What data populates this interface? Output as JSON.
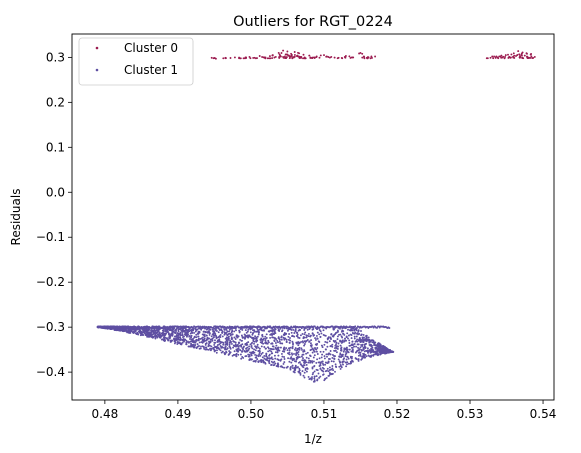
{
  "chart_data": {
    "type": "scatter",
    "title": "Outliers for RGT_0224",
    "xlabel": "1/z",
    "ylabel": "Residuals",
    "xlim": [
      0.4755,
      0.5415
    ],
    "ylim": [
      -0.462,
      0.352
    ],
    "xticks": [
      0.48,
      0.49,
      0.5,
      0.51,
      0.52,
      0.53,
      0.54
    ],
    "xtick_labels": [
      "0.48",
      "0.49",
      "0.50",
      "0.51",
      "0.52",
      "0.53",
      "0.54"
    ],
    "yticks": [
      0.3,
      0.2,
      0.1,
      0.0,
      -0.1,
      -0.2,
      -0.3,
      -0.4
    ],
    "ytick_labels": [
      "0.3",
      "0.2",
      "0.1",
      "0.0",
      "−0.1",
      "−0.2",
      "−0.3",
      "−0.4"
    ],
    "grid": false,
    "legend_position": "top-left",
    "series": [
      {
        "name": "Cluster 0",
        "color": "#9b1b4f",
        "points": [
          [
            0.4952,
            0.297
          ],
          [
            0.4965,
            0.299
          ],
          [
            0.4978,
            0.3
          ],
          [
            0.499,
            0.298
          ],
          [
            0.4998,
            0.301
          ],
          [
            0.5005,
            0.299
          ],
          [
            0.5012,
            0.303
          ],
          [
            0.502,
            0.3
          ],
          [
            0.5025,
            0.298
          ],
          [
            0.503,
            0.305
          ],
          [
            0.5034,
            0.301
          ],
          [
            0.5038,
            0.31
          ],
          [
            0.5041,
            0.302
          ],
          [
            0.5044,
            0.315
          ],
          [
            0.5047,
            0.299
          ],
          [
            0.505,
            0.313
          ],
          [
            0.5052,
            0.304
          ],
          [
            0.5055,
            0.308
          ],
          [
            0.5058,
            0.3
          ],
          [
            0.506,
            0.312
          ],
          [
            0.5063,
            0.303
          ],
          [
            0.5066,
            0.309
          ],
          [
            0.5069,
            0.301
          ],
          [
            0.5072,
            0.306
          ],
          [
            0.5075,
            0.298
          ],
          [
            0.508,
            0.304
          ],
          [
            0.5085,
            0.3
          ],
          [
            0.509,
            0.302
          ],
          [
            0.51,
            0.305
          ],
          [
            0.511,
            0.301
          ],
          [
            0.512,
            0.299
          ],
          [
            0.513,
            0.303
          ],
          [
            0.514,
            0.3
          ],
          [
            0.515,
            0.31
          ],
          [
            0.5155,
            0.301
          ],
          [
            0.516,
            0.298
          ],
          [
            0.5165,
            0.302
          ],
          [
            0.5328,
            0.299
          ],
          [
            0.5333,
            0.302
          ],
          [
            0.5338,
            0.3
          ],
          [
            0.5343,
            0.304
          ],
          [
            0.5348,
            0.301
          ],
          [
            0.5352,
            0.306
          ],
          [
            0.5356,
            0.3
          ],
          [
            0.536,
            0.309
          ],
          [
            0.5363,
            0.303
          ],
          [
            0.5366,
            0.314
          ],
          [
            0.5369,
            0.301
          ],
          [
            0.5372,
            0.311
          ],
          [
            0.5375,
            0.304
          ],
          [
            0.5378,
            0.308
          ],
          [
            0.5381,
            0.299
          ],
          [
            0.5384,
            0.302
          ]
        ]
      },
      {
        "name": "Cluster 1",
        "color": "#5e4fa2",
        "region": {
          "top": -0.298,
          "bottom": [
            [
              0.479,
              -0.3
            ],
            [
              0.482,
              -0.308
            ],
            [
              0.486,
              -0.322
            ],
            [
              0.49,
              -0.338
            ],
            [
              0.494,
              -0.352
            ],
            [
              0.498,
              -0.368
            ],
            [
              0.502,
              -0.382
            ],
            [
              0.505,
              -0.392
            ],
            [
              0.507,
              -0.41
            ],
            [
              0.508,
              -0.422
            ],
            [
              0.51,
              -0.42
            ],
            [
              0.512,
              -0.398
            ],
            [
              0.514,
              -0.38
            ],
            [
              0.516,
              -0.368
            ],
            [
              0.518,
              -0.36
            ],
            [
              0.5195,
              -0.355
            ]
          ],
          "right": [
            [
              0.5195,
              -0.355
            ],
            [
              0.5185,
              -0.345
            ],
            [
              0.517,
              -0.33
            ],
            [
              0.5155,
              -0.315
            ],
            [
              0.5145,
              -0.3
            ],
            [
              0.5135,
              -0.298
            ]
          ],
          "x_end_top": 0.519,
          "n_points": 2600
        }
      }
    ]
  }
}
